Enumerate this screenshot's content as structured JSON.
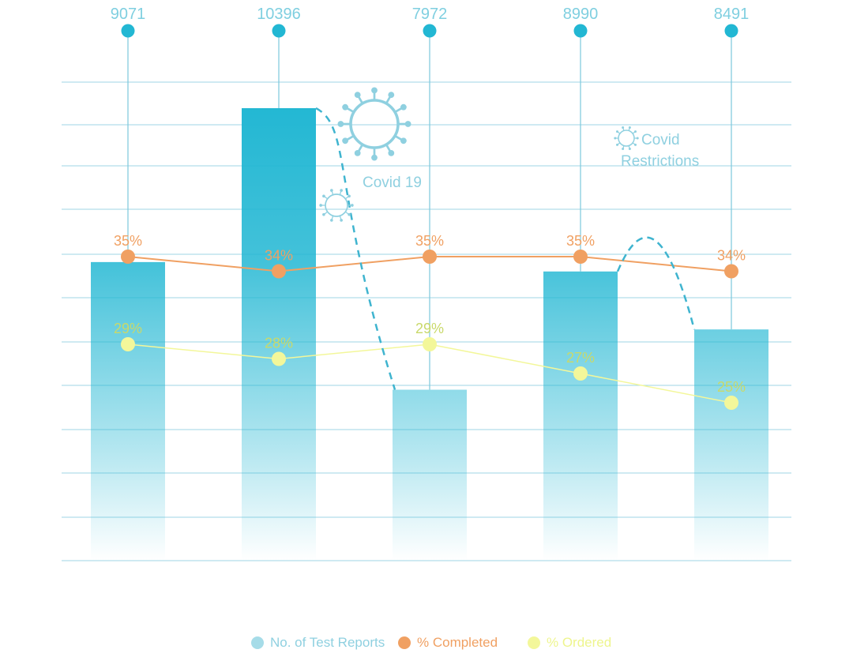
{
  "chart_data": {
    "type": "bar",
    "categories": [
      "",
      "",
      "",
      "",
      ""
    ],
    "series": [
      {
        "name": "No. of Test Reports",
        "values": [
          9071,
          10396,
          7972,
          8990,
          8491
        ],
        "color": "#22b7d3",
        "chart_type": "bar"
      },
      {
        "name": "% Completed",
        "values": [
          35,
          34,
          35,
          35,
          34
        ],
        "color": "#f0a062",
        "chart_type": "line"
      },
      {
        "name": "% Ordered",
        "values": [
          29,
          28,
          29,
          27,
          25
        ],
        "color": "#f3f79a",
        "chart_type": "line"
      }
    ],
    "bar_labels": [
      "9071",
      "10396",
      "7972",
      "8990",
      "8491"
    ],
    "completed_labels": [
      "35%",
      "34%",
      "35%",
      "35%",
      "34%"
    ],
    "ordered_labels": [
      "29%",
      "28%",
      "29%",
      "27%",
      "25%"
    ],
    "annotations": [
      {
        "text": "Covid 19",
        "between": [
          1,
          2
        ]
      },
      {
        "text": "Covid Restrictions",
        "lines": [
          "Covid",
          "Restrictions"
        ],
        "between": [
          3,
          4
        ]
      }
    ],
    "grid": true,
    "legend_position": "bottom",
    "title": "",
    "xlabel": "",
    "ylabel": ""
  },
  "legend": [
    {
      "label": "No. of Test Reports",
      "color": "#a6dce8"
    },
    {
      "label": "% Completed",
      "color": "#f0a062"
    },
    {
      "label": "% Ordered",
      "color": "#f3f79a"
    }
  ],
  "colors": {
    "bar": "#22b7d3",
    "grid": "#9fd6e5",
    "stem": "#7cc9dc",
    "pin": "#22b7d3",
    "annotation": "#8fd0e0",
    "dashed": "#3fb4cf"
  }
}
